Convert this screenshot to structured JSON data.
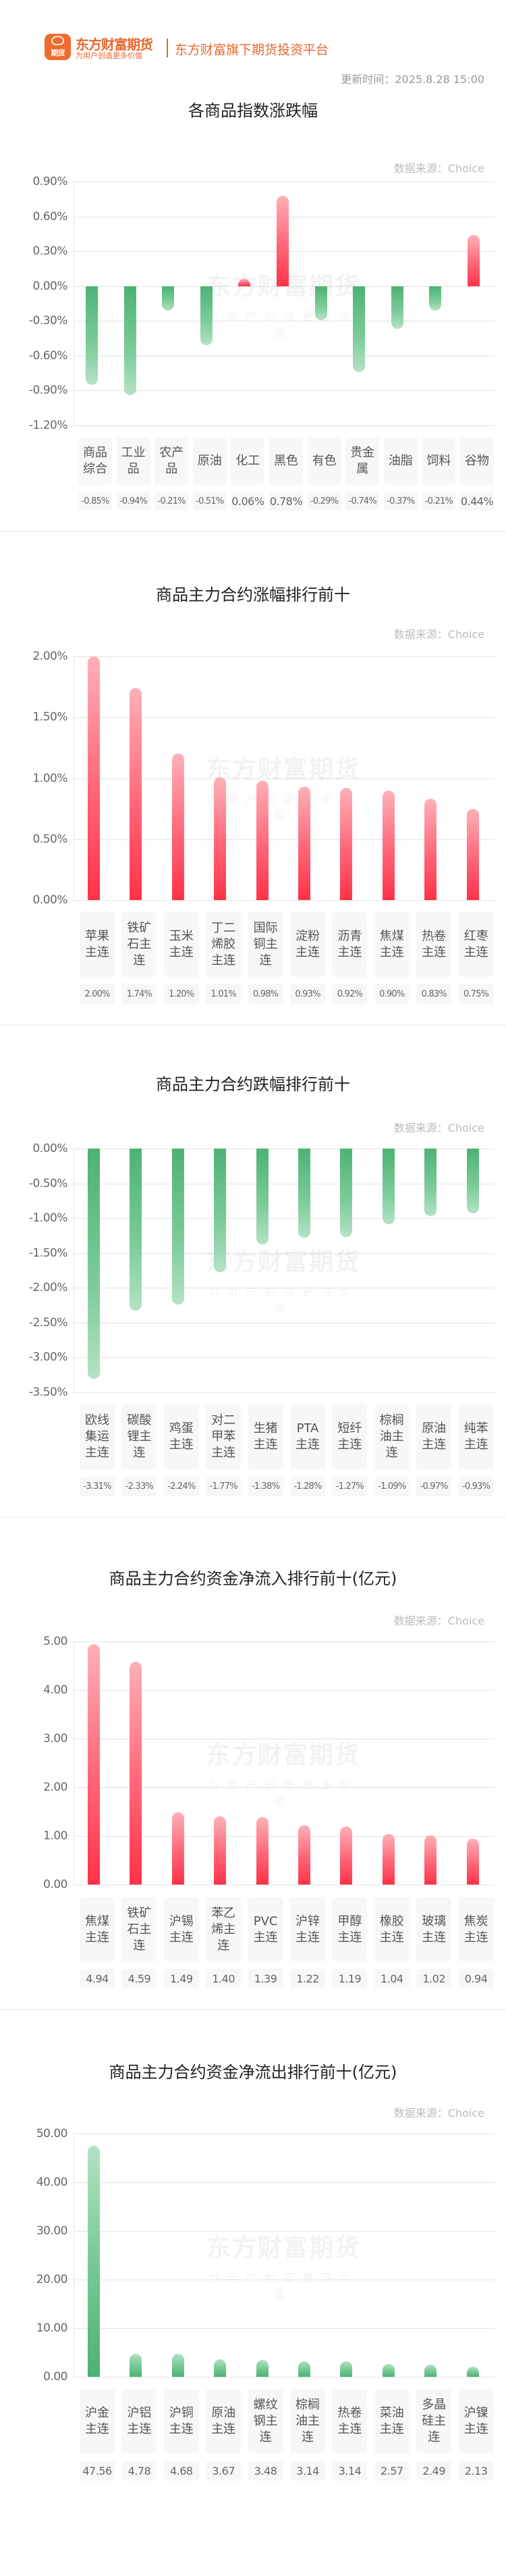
{
  "header": {
    "logo_text": "期货",
    "brand_name": "东方财富期货",
    "brand_slogan": "为用户创造更多价值",
    "platform_tagline": "东方财富旗下期货投资平台",
    "update_time": "更新时间：2025.8.28 15:00"
  },
  "watermark": {
    "line1": "东方财富期货",
    "line2": "为用户创造更多价值"
  },
  "colors": {
    "brand": "#e8682f",
    "up": "#ff3248",
    "down": "#4db274"
  },
  "chart_data": [
    {
      "type": "bar",
      "title": "各商品指数涨跌幅",
      "source": "数据来源：Choice",
      "unit": "%",
      "categories": [
        "商品综合",
        "工业品",
        "农产品",
        "原油",
        "化工",
        "黑色",
        "有色",
        "贵金属",
        "油脂",
        "饲料",
        "谷物"
      ],
      "values": [
        -0.85,
        -0.94,
        -0.21,
        -0.51,
        0.06,
        0.78,
        -0.29,
        -0.74,
        -0.37,
        -0.21,
        0.44
      ],
      "value_labels": [
        "-0.85%",
        "-0.94%",
        "-0.21%",
        "-0.51%",
        "0.06%",
        "0.78%",
        "-0.29%",
        "-0.74%",
        "-0.37%",
        "-0.21%",
        "0.44%"
      ],
      "yticks": [
        "0.90%",
        "0.60%",
        "0.30%",
        "0.00%",
        "-0.30%",
        "-0.60%",
        "-0.90%",
        "-1.20%"
      ],
      "ylim": [
        -1.2,
        0.9
      ],
      "xlabel": "",
      "ylabel": "",
      "grid": true
    },
    {
      "type": "bar",
      "title": "商品主力合约涨幅排行前十",
      "source": "数据来源：Choice",
      "unit": "%",
      "categories": [
        "苹果主连",
        "铁矿石主连",
        "玉米主连",
        "丁二烯胶主连",
        "国际铜主连",
        "淀粉主连",
        "沥青主连",
        "焦煤主连",
        "热卷主连",
        "红枣主连"
      ],
      "values": [
        2.0,
        1.74,
        1.2,
        1.01,
        0.98,
        0.93,
        0.92,
        0.9,
        0.83,
        0.75
      ],
      "value_labels": [
        "2.00%",
        "1.74%",
        "1.20%",
        "1.01%",
        "0.98%",
        "0.93%",
        "0.92%",
        "0.90%",
        "0.83%",
        "0.75%"
      ],
      "yticks": [
        "2.00%",
        "1.50%",
        "1.00%",
        "0.50%",
        "0.00%"
      ],
      "ylim": [
        0,
        2.0
      ],
      "xlabel": "",
      "ylabel": "",
      "grid": true
    },
    {
      "type": "bar",
      "title": "商品主力合约跌幅排行前十",
      "source": "数据来源：Choice",
      "unit": "%",
      "categories": [
        "欧线集运主连",
        "碳酸锂主连",
        "鸡蛋主连",
        "对二甲苯主连",
        "生猪主连",
        "PTA主连",
        "短纤主连",
        "棕榈油主连",
        "原油主连",
        "纯苯主连"
      ],
      "values": [
        -3.31,
        -2.33,
        -2.24,
        -1.77,
        -1.38,
        -1.28,
        -1.27,
        -1.09,
        -0.97,
        -0.93
      ],
      "value_labels": [
        "-3.31%",
        "-2.33%",
        "-2.24%",
        "-1.77%",
        "-1.38%",
        "-1.28%",
        "-1.27%",
        "-1.09%",
        "-0.97%",
        "-0.93%"
      ],
      "yticks": [
        "0.00%",
        "-0.50%",
        "-1.00%",
        "-1.50%",
        "-2.00%",
        "-2.50%",
        "-3.00%",
        "-3.50%"
      ],
      "ylim": [
        -3.5,
        0
      ],
      "xlabel": "",
      "ylabel": "",
      "grid": true
    },
    {
      "type": "bar",
      "title": "商品主力合约资金净流入排行前十(亿元)",
      "source": "数据来源：Choice",
      "unit": "亿元",
      "categories": [
        "焦煤主连",
        "铁矿石主连",
        "沪锡主连",
        "苯乙烯主连",
        "PVC主连",
        "沪锌主连",
        "甲醇主连",
        "橡胶主连",
        "玻璃主连",
        "焦炭主连"
      ],
      "values": [
        4.94,
        4.59,
        1.49,
        1.4,
        1.39,
        1.22,
        1.19,
        1.04,
        1.02,
        0.94
      ],
      "value_labels": [
        "4.94",
        "4.59",
        "1.49",
        "1.40",
        "1.39",
        "1.22",
        "1.19",
        "1.04",
        "1.02",
        "0.94"
      ],
      "yticks": [
        "5.00",
        "4.00",
        "3.00",
        "2.00",
        "1.00",
        "0.00"
      ],
      "ylim": [
        0,
        5.0
      ],
      "xlabel": "",
      "ylabel": "",
      "grid": true
    },
    {
      "type": "bar",
      "title": "商品主力合约资金净流出排行前十(亿元)",
      "source": "数据来源：Choice",
      "unit": "亿元",
      "categories": [
        "沪金主连",
        "沪铝主连",
        "沪铜主连",
        "原油主连",
        "螺纹钢主连",
        "棕榈油主连",
        "热卷主连",
        "菜油主连",
        "多晶硅主连",
        "沪镍主连"
      ],
      "values": [
        47.56,
        4.78,
        4.68,
        3.67,
        3.48,
        3.14,
        3.14,
        2.57,
        2.49,
        2.13
      ],
      "value_labels": [
        "47.56",
        "4.78",
        "4.68",
        "3.67",
        "3.48",
        "3.14",
        "3.14",
        "2.57",
        "2.49",
        "2.13"
      ],
      "yticks": [
        "50.00",
        "40.00",
        "30.00",
        "20.00",
        "10.00",
        "0.00"
      ],
      "ylim": [
        0,
        50.0
      ],
      "xlabel": "",
      "ylabel": "",
      "grid": true
    }
  ]
}
